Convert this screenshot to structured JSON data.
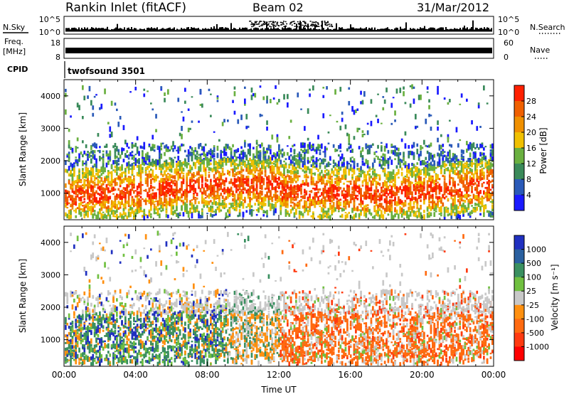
{
  "header": {
    "station": "Rankin Inlet (fitACF)",
    "beam": "Beam 02",
    "date": "31/Mar/2012"
  },
  "mini_panels": {
    "nsky_label": "N.Sky",
    "nsearch_label": "N.Search",
    "nsky_ticks": [
      "10^5",
      "10^0"
    ],
    "freq_label_1": "Freq.",
    "freq_label_2": "[MHz]",
    "freq_ticks": [
      "18",
      "8"
    ],
    "nave_label": "Nave",
    "nave_ticks": [
      "60",
      "0"
    ],
    "cpid_label": "CPID",
    "cpid_text": "twofsound 3501"
  },
  "chart_data": [
    {
      "type": "heatmap",
      "title": "",
      "ylabel": "Slant Range [km]",
      "xlabel": "",
      "x_range_hours": [
        0,
        24
      ],
      "ylim": [
        180,
        4500
      ],
      "yticks": [
        "1000",
        "2000",
        "3000",
        "4000"
      ],
      "colorbar": {
        "label": "Power [dB]",
        "ticks": [
          "4",
          "8",
          "12",
          "16",
          "20",
          "24",
          "28"
        ],
        "colors": [
          "#1a1aff",
          "#2a5ab8",
          "#3a8a5a",
          "#6ab040",
          "#f0c000",
          "#f09000",
          "#f06000",
          "#ff2000"
        ]
      }
    },
    {
      "type": "heatmap",
      "title": "",
      "ylabel": "Slant Range [km]",
      "xlabel": "Time UT",
      "x_range_hours": [
        0,
        24
      ],
      "ylim": [
        180,
        4500
      ],
      "yticks": [
        "1000",
        "2000",
        "3000",
        "4000"
      ],
      "xticks": [
        "00:00",
        "04:00",
        "08:00",
        "12:00",
        "16:00",
        "20:00",
        "00:00"
      ],
      "colorbar": {
        "label": "Velocity [m s⁻¹]",
        "ticks": [
          "1000",
          "500",
          "100",
          "25",
          "-25",
          "-100",
          "-500",
          "-1000"
        ],
        "colors": [
          "#2030c0",
          "#2a60a0",
          "#3a9060",
          "#70c040",
          "#c8c8c8",
          "#ff9010",
          "#ff6a10",
          "#ff3a10",
          "#ff0000"
        ]
      }
    }
  ]
}
